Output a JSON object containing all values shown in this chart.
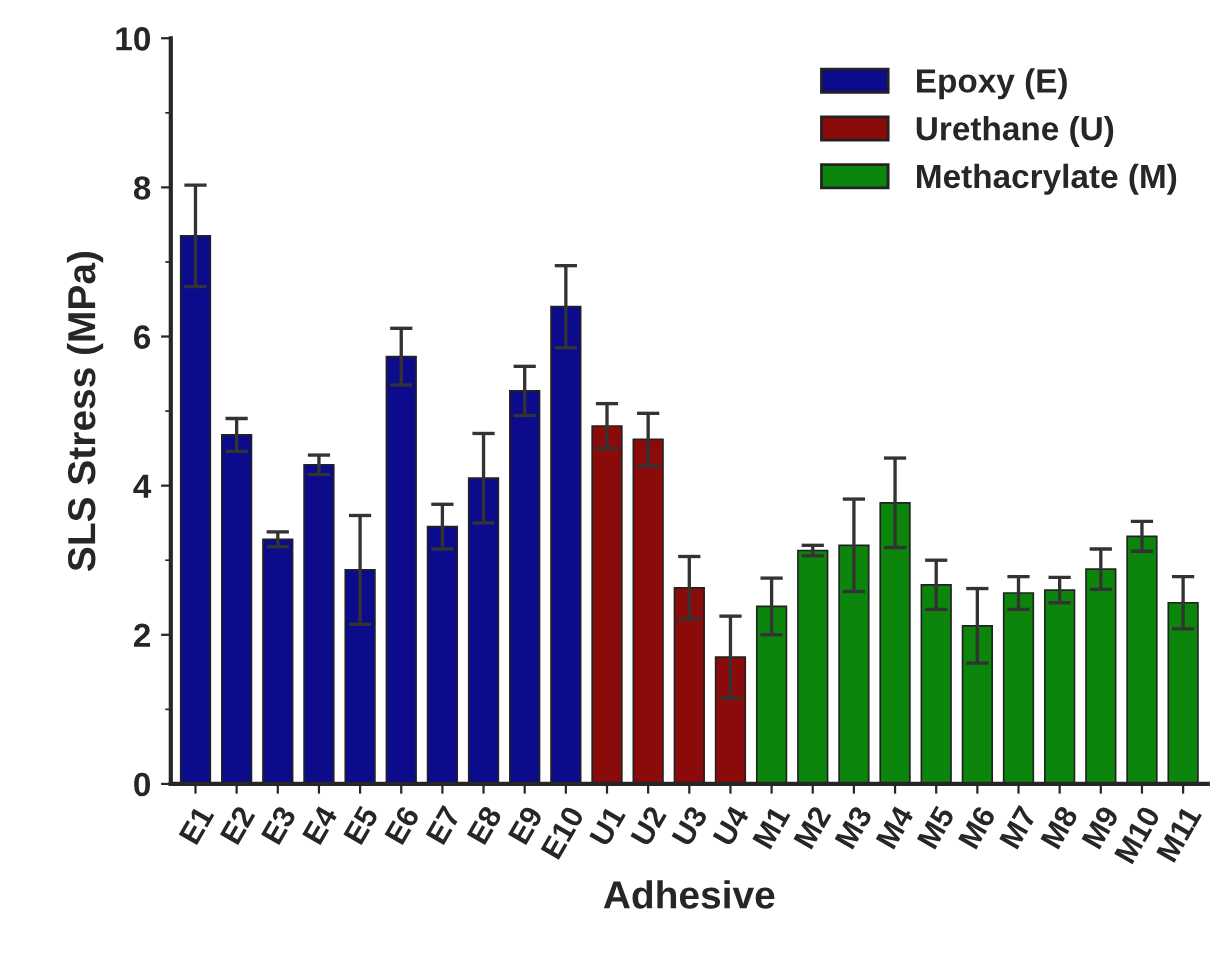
{
  "chart_data": {
    "type": "bar",
    "xlabel": "Adhesive",
    "ylabel": "SLS Stress (MPa)",
    "categories": [
      "E1",
      "E2",
      "E3",
      "E4",
      "E5",
      "E6",
      "E7",
      "E8",
      "E9",
      "E10",
      "U1",
      "U2",
      "U3",
      "U4",
      "M1",
      "M2",
      "M3",
      "M4",
      "M5",
      "M6",
      "M7",
      "M8",
      "M9",
      "M10",
      "M11"
    ],
    "series": [
      {
        "name": "Epoxy (E)",
        "color": "#0b0b8c",
        "values": [
          7.35,
          4.68,
          3.28,
          4.28,
          2.87,
          5.73,
          3.45,
          4.1,
          5.27,
          6.4,
          null,
          null,
          null,
          null,
          null,
          null,
          null,
          null,
          null,
          null,
          null,
          null,
          null,
          null,
          null
        ],
        "errors": [
          0.68,
          0.22,
          0.1,
          0.13,
          0.73,
          0.38,
          0.3,
          0.6,
          0.33,
          0.55,
          null,
          null,
          null,
          null,
          null,
          null,
          null,
          null,
          null,
          null,
          null,
          null,
          null,
          null,
          null
        ]
      },
      {
        "name": "Urethane (U)",
        "color": "#8b0a0a",
        "values": [
          null,
          null,
          null,
          null,
          null,
          null,
          null,
          null,
          null,
          null,
          4.8,
          4.62,
          2.63,
          1.7,
          null,
          null,
          null,
          null,
          null,
          null,
          null,
          null,
          null,
          null,
          null
        ],
        "errors": [
          null,
          null,
          null,
          null,
          null,
          null,
          null,
          null,
          null,
          null,
          0.3,
          0.35,
          0.42,
          0.55,
          null,
          null,
          null,
          null,
          null,
          null,
          null,
          null,
          null,
          null,
          null
        ]
      },
      {
        "name": "Methacrylate (M)",
        "color": "#0b850b",
        "values": [
          null,
          null,
          null,
          null,
          null,
          null,
          null,
          null,
          null,
          null,
          null,
          null,
          null,
          null,
          2.38,
          3.13,
          3.2,
          3.77,
          2.67,
          2.12,
          2.56,
          2.6,
          2.88,
          3.32,
          2.43
        ],
        "errors": [
          null,
          null,
          null,
          null,
          null,
          null,
          null,
          null,
          null,
          null,
          null,
          null,
          null,
          null,
          0.38,
          0.07,
          0.62,
          0.6,
          0.33,
          0.5,
          0.22,
          0.17,
          0.27,
          0.2,
          0.35
        ]
      }
    ],
    "ylim": [
      0,
      10
    ],
    "yticks": [
      0,
      2,
      4,
      6,
      8,
      10
    ],
    "grid": false,
    "legend": "top right"
  }
}
